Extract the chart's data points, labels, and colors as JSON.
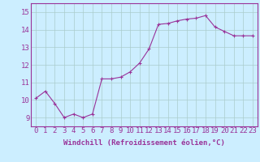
{
  "x": [
    0,
    1,
    2,
    3,
    4,
    5,
    6,
    7,
    8,
    9,
    10,
    11,
    12,
    13,
    14,
    15,
    16,
    17,
    18,
    19,
    20,
    21,
    22,
    23
  ],
  "y": [
    10.1,
    10.5,
    9.8,
    9.0,
    9.2,
    9.0,
    9.2,
    11.2,
    11.2,
    11.3,
    11.6,
    12.1,
    12.9,
    14.3,
    14.35,
    14.5,
    14.6,
    14.65,
    14.8,
    14.15,
    13.9,
    13.65,
    13.65,
    13.65
  ],
  "line_color": "#993399",
  "marker": "+",
  "marker_size": 3,
  "marker_lw": 0.8,
  "bg_color": "#cceeff",
  "grid_color": "#aacccc",
  "xlabel": "Windchill (Refroidissement éolien,°C)",
  "ylabel_ticks": [
    9,
    10,
    11,
    12,
    13,
    14,
    15
  ],
  "xlim": [
    -0.5,
    23.5
  ],
  "ylim": [
    8.5,
    15.5
  ],
  "label_color": "#993399",
  "xlabel_fontsize": 6.5,
  "tick_fontsize": 6.5,
  "linewidth": 0.8
}
